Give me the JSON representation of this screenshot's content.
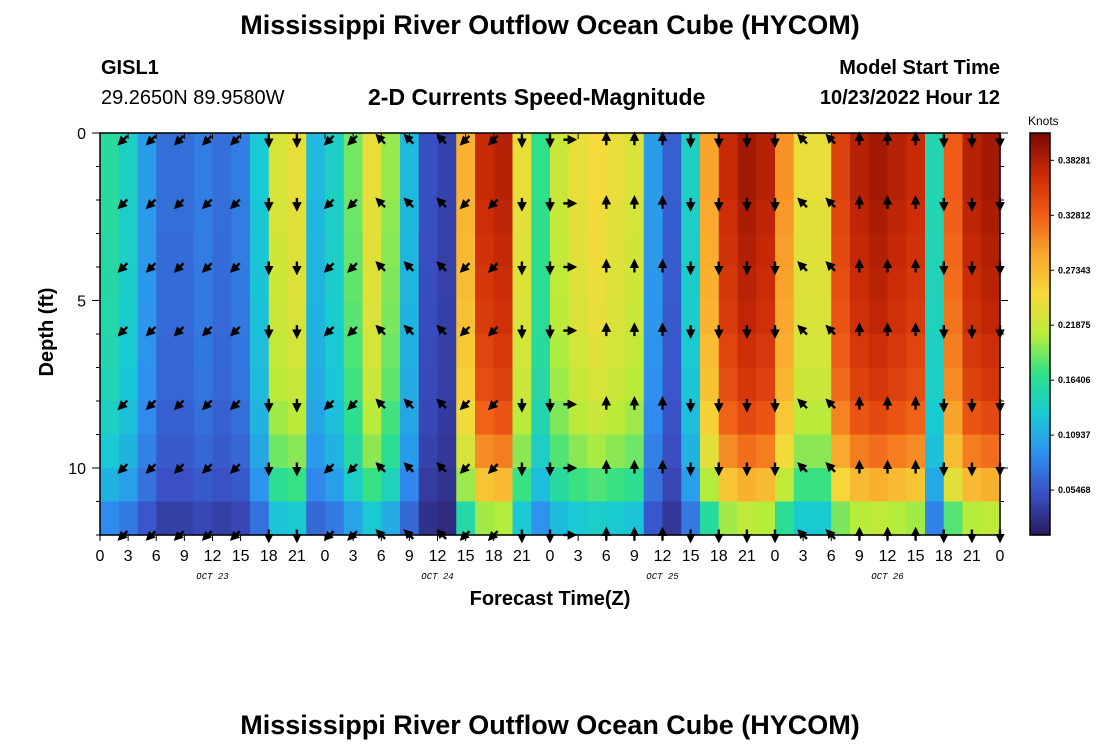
{
  "header": {
    "title": "Mississippi River Outflow Ocean Cube (HYCOM)",
    "station_id": "GISL1",
    "station_coords": "29.2650N  89.9580W",
    "subtitle": "2-D Currents Speed-Magnitude",
    "model_start_label": "Model Start Time",
    "model_start_value": "10/23/2022 Hour 12"
  },
  "footer": {
    "title_repeat": "Mississippi River Outflow Ocean Cube (HYCOM)"
  },
  "chart_data": {
    "type": "heatmap",
    "xlabel": "Forecast Time(Z)",
    "ylabel": "Depth (ft)",
    "x_ticks": [
      "0",
      "3",
      "6",
      "9",
      "12",
      "15",
      "18",
      "21",
      "0",
      "3",
      "6",
      "9",
      "12",
      "15",
      "18",
      "21",
      "0",
      "3",
      "6",
      "9",
      "12",
      "15",
      "18",
      "21",
      "0",
      "3",
      "6",
      "9",
      "12",
      "15",
      "18",
      "21",
      "0"
    ],
    "date_labels": [
      {
        "label": "OCT 23",
        "at_hour": 12
      },
      {
        "label": "OCT 24",
        "at_hour": 36
      },
      {
        "label": "OCT 25",
        "at_hour": 60
      },
      {
        "label": "OCT 26",
        "at_hour": 84
      }
    ],
    "x_range_hours": [
      0,
      96
    ],
    "y_ticks": [
      0,
      5,
      10
    ],
    "y_range_ft": [
      0,
      12
    ],
    "colorbar": {
      "title": "Knots",
      "tick_labels": [
        "0.38281",
        "0.32812",
        "0.27343",
        "0.21875",
        "0.16406",
        "0.10937",
        "0.05468"
      ],
      "tick_values": [
        0.38281,
        0.32812,
        0.27343,
        0.21875,
        0.16406,
        0.10937,
        0.05468
      ],
      "range": [
        0.01,
        0.41
      ],
      "colors": [
        "#2a1a5e",
        "#3a4fc4",
        "#2f8ef0",
        "#19c9d6",
        "#2ee08a",
        "#b9ec3a",
        "#f6d93a",
        "#f9a52c",
        "#ef5a16",
        "#c92a06",
        "#7a0a03"
      ]
    },
    "depth_levels_ft": [
      0,
      1,
      2,
      3,
      4,
      5,
      6,
      7,
      8,
      9,
      10,
      11
    ],
    "time_hours": [
      0,
      2,
      4,
      6,
      8,
      10,
      12,
      14,
      16,
      18,
      20,
      22,
      24,
      26,
      28,
      30,
      32,
      34,
      36,
      38,
      40,
      42,
      44,
      46,
      48,
      50,
      52,
      54,
      56,
      58,
      60,
      62,
      64,
      66,
      68,
      70,
      72,
      74,
      76,
      78,
      80,
      82,
      84,
      86,
      88,
      90,
      92,
      94
    ],
    "speed_profile_surface": [
      0.16,
      0.14,
      0.1,
      0.07,
      0.07,
      0.08,
      0.07,
      0.08,
      0.13,
      0.23,
      0.24,
      0.12,
      0.14,
      0.19,
      0.24,
      0.2,
      0.12,
      0.05,
      0.04,
      0.28,
      0.37,
      0.38,
      0.24,
      0.17,
      0.22,
      0.24,
      0.25,
      0.24,
      0.23,
      0.1,
      0.06,
      0.14,
      0.29,
      0.37,
      0.39,
      0.38,
      0.3,
      0.24,
      0.24,
      0.35,
      0.38,
      0.39,
      0.38,
      0.37,
      0.15,
      0.33,
      0.38,
      0.39
    ],
    "depth_factor": [
      1.0,
      1.0,
      0.99,
      0.98,
      0.97,
      0.96,
      0.94,
      0.92,
      0.88,
      0.82,
      0.72,
      0.55
    ],
    "arrow_times": [
      2.5,
      5.5,
      8.5,
      11.5,
      14.5,
      18,
      21,
      24.5,
      27,
      30,
      33,
      36.5,
      39,
      42,
      45,
      48,
      50,
      54,
      57,
      60,
      63,
      66,
      69,
      72,
      75,
      78,
      81,
      84,
      87,
      90,
      93,
      96
    ],
    "arrow_depths_ft": [
      0.2,
      2.1,
      4.0,
      5.9,
      8.1,
      10.0,
      12.0
    ],
    "arrow_dir_deg": [
      225,
      225,
      225,
      225,
      225,
      180,
      180,
      225,
      225,
      315,
      315,
      315,
      225,
      225,
      180,
      180,
      90,
      0,
      0,
      0,
      180,
      180,
      180,
      180,
      315,
      315,
      0,
      0,
      0,
      180,
      180,
      180
    ]
  }
}
